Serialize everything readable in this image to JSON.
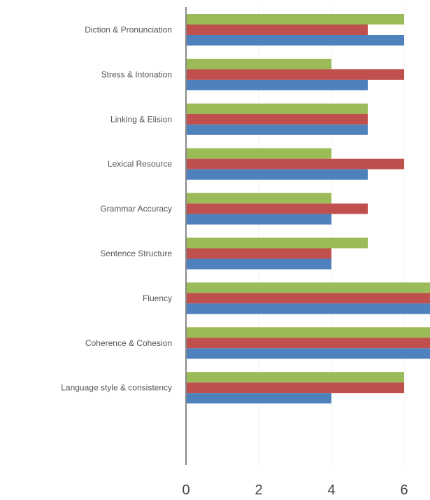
{
  "chart_data": {
    "type": "bar",
    "orientation": "horizontal",
    "categories": [
      "Diction & Pronunciation",
      "Stress & Intonation",
      "Linking & Elision",
      "Lexical Resource",
      "Grammar Accuracy",
      "Sentence Structure",
      "Fluency",
      "Coherence & Cohesion",
      "Language style & consistency"
    ],
    "series": [
      {
        "color": "#9bbb59",
        "values": [
          6,
          4,
          5,
          4,
          4,
          5,
          7,
          7,
          6
        ]
      },
      {
        "color": "#c0504d",
        "values": [
          5,
          6,
          5,
          6,
          5,
          4,
          7,
          7,
          6
        ]
      },
      {
        "color": "#4f81bd",
        "values": [
          6,
          5,
          5,
          5,
          4,
          4,
          7,
          7,
          4
        ]
      }
    ],
    "xlim": [
      0,
      7
    ],
    "xticks": [
      "0",
      "2",
      "4",
      "6"
    ],
    "grid": true,
    "legend": "none",
    "title": "",
    "xlabel": "",
    "ylabel": ""
  }
}
